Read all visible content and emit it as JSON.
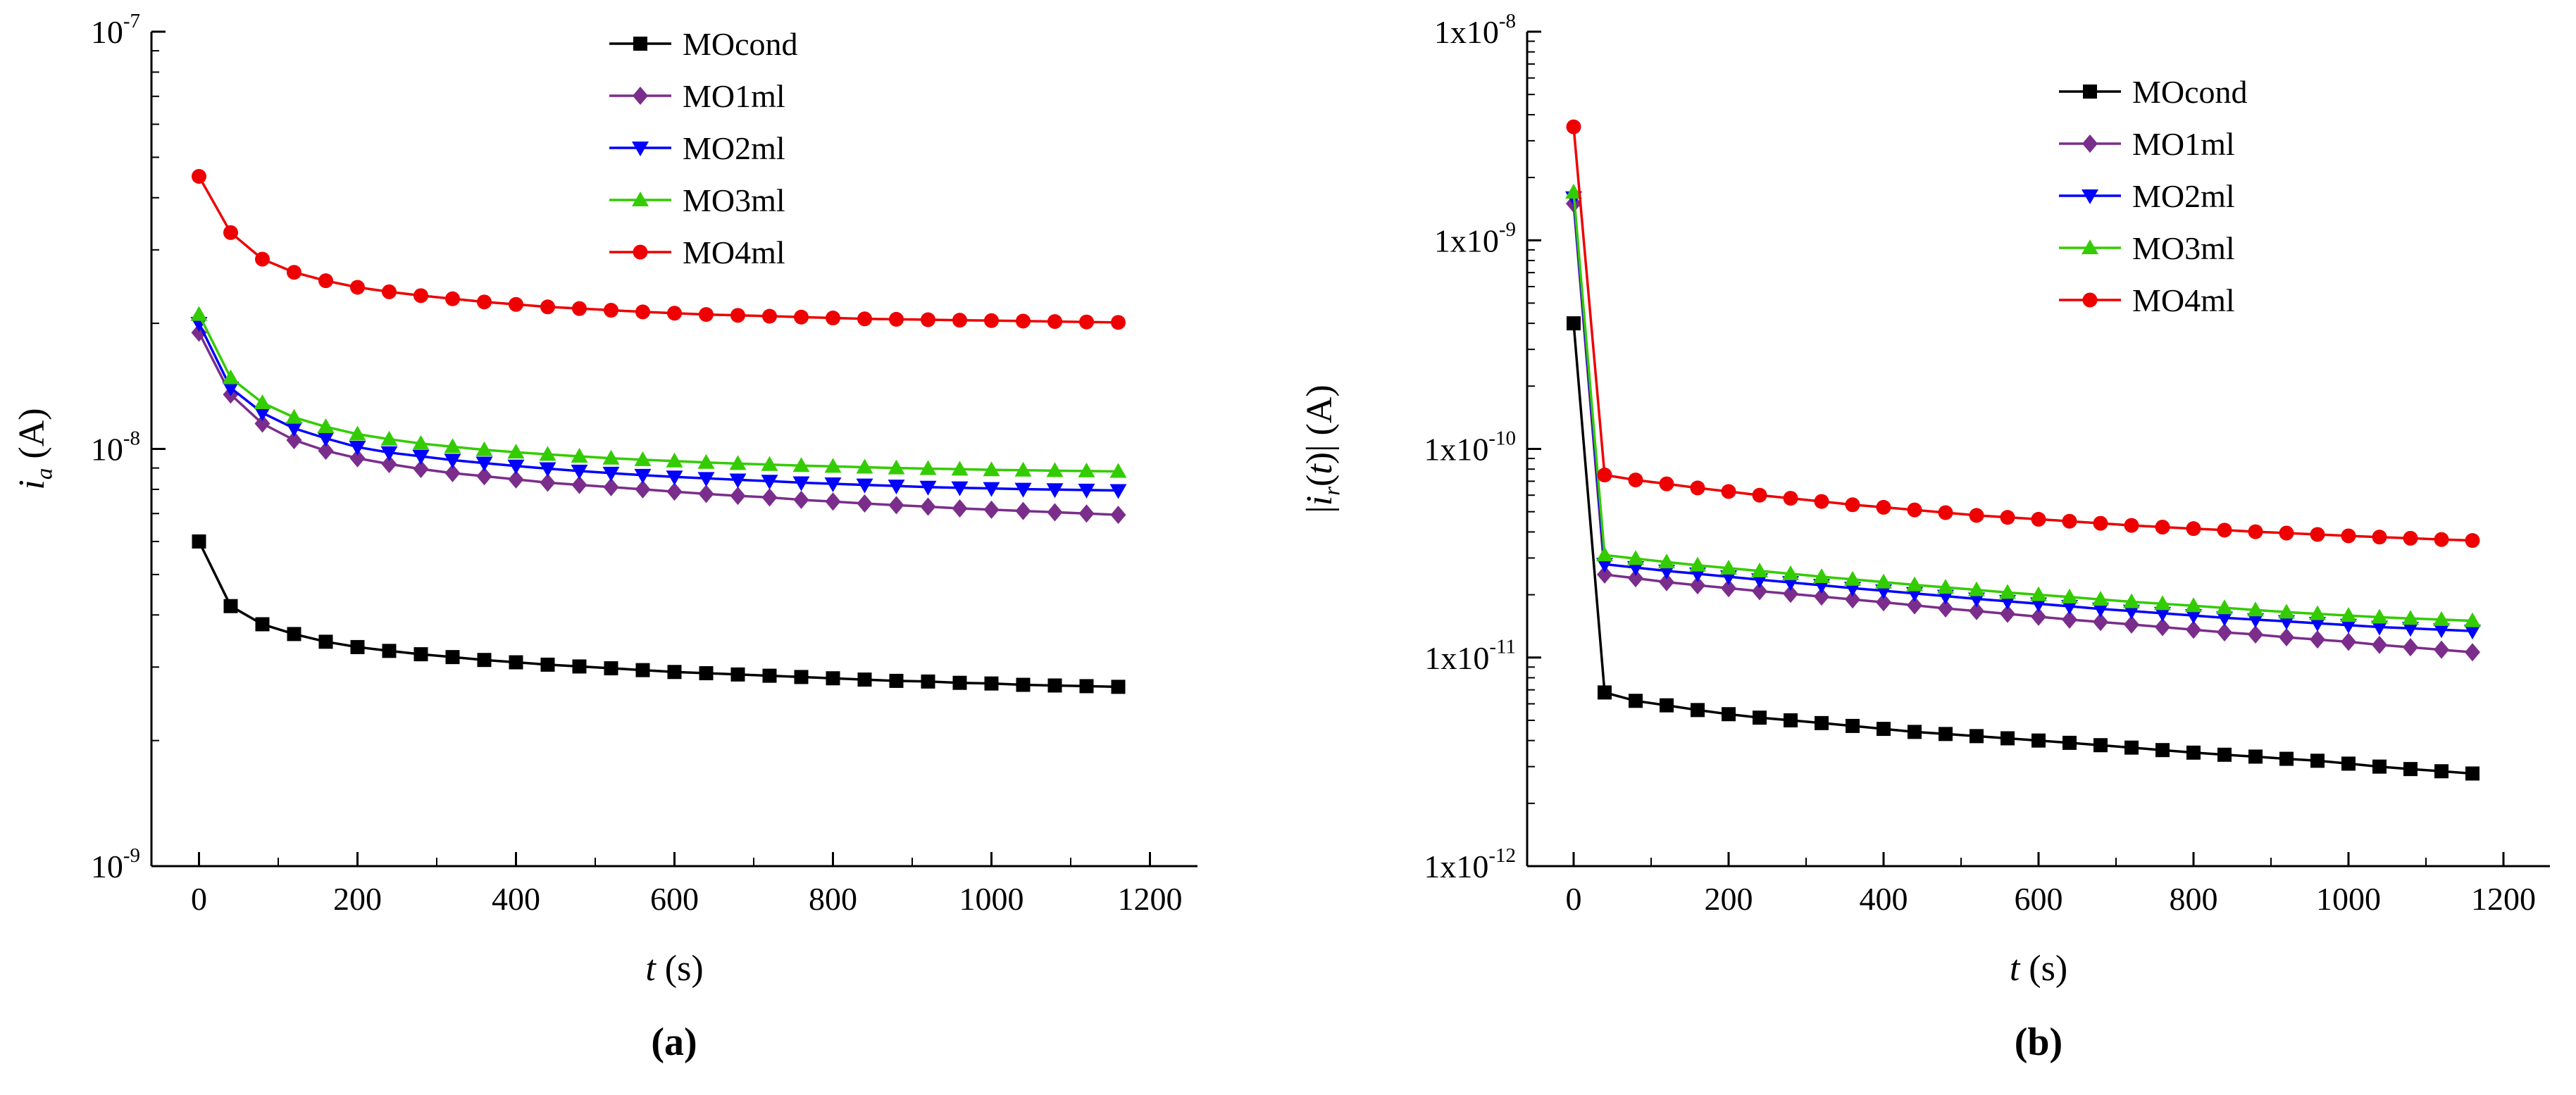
{
  "figure": {
    "background": "#ffffff",
    "series_colors": {
      "MOcond": "#000000",
      "MO1ml": "#7b2d8b",
      "MO2ml": "#0000ff",
      "MO3ml": "#33cc00",
      "MO4ml": "#ee0000"
    }
  },
  "chart_data": [
    {
      "id": "a",
      "type": "line",
      "caption": "(a)",
      "x_label": [
        {
          "text": "t",
          "italic": true
        },
        {
          "text": " (s)"
        }
      ],
      "y_label": [
        {
          "text": "i",
          "italic": true
        },
        {
          "text": "a",
          "italic": true,
          "sub": true
        },
        {
          "text": " (A)"
        }
      ],
      "x_range": [
        -60,
        1260
      ],
      "x_ticks": [
        0,
        200,
        400,
        600,
        800,
        1000,
        1200
      ],
      "x_minor_step": 100,
      "y_log_range": [
        -9,
        -7
      ],
      "y_ticks": [
        {
          "base": "10",
          "exp": "-7"
        },
        {
          "base": "10",
          "exp": "-8"
        },
        {
          "base": "10",
          "exp": "-9"
        }
      ],
      "legend_position": "top-center",
      "grid": false,
      "t": [
        0,
        40,
        80,
        120,
        160,
        200,
        240,
        280,
        320,
        360,
        400,
        440,
        480,
        520,
        560,
        600,
        640,
        680,
        720,
        760,
        800,
        840,
        880,
        920,
        960,
        1000,
        1040,
        1080,
        1120,
        1160
      ],
      "series": [
        {
          "name": "MOcond",
          "color": "#000000",
          "marker": "square",
          "y": [
            6e-09,
            4.2e-09,
            3.8e-09,
            3.6e-09,
            3.45e-09,
            3.35e-09,
            3.28e-09,
            3.22e-09,
            3.17e-09,
            3.12e-09,
            3.08e-09,
            3.04e-09,
            3.01e-09,
            2.98e-09,
            2.95e-09,
            2.92e-09,
            2.9e-09,
            2.88e-09,
            2.86e-09,
            2.84e-09,
            2.82e-09,
            2.8e-09,
            2.78e-09,
            2.77e-09,
            2.75e-09,
            2.74e-09,
            2.72e-09,
            2.71e-09,
            2.7e-09,
            2.69e-09
          ]
        },
        {
          "name": "MO1ml",
          "color": "#7b2d8b",
          "marker": "diamond",
          "y": [
            1.9e-08,
            1.35e-08,
            1.15e-08,
            1.05e-08,
            9.9e-09,
            9.5e-09,
            9.2e-09,
            8.95e-09,
            8.75e-09,
            8.6e-09,
            8.45e-09,
            8.3e-09,
            8.2e-09,
            8.1e-09,
            8e-09,
            7.9e-09,
            7.8e-09,
            7.72e-09,
            7.65e-09,
            7.55e-09,
            7.48e-09,
            7.4e-09,
            7.33e-09,
            7.27e-09,
            7.2e-09,
            7.15e-09,
            7.1e-09,
            7.05e-09,
            7e-09,
            6.95e-09
          ]
        },
        {
          "name": "MO2ml",
          "color": "#0000ff",
          "marker": "triangle-down",
          "y": [
            2e-08,
            1.4e-08,
            1.22e-08,
            1.12e-08,
            1.06e-08,
            1.01e-08,
            9.8e-09,
            9.6e-09,
            9.4e-09,
            9.25e-09,
            9.1e-09,
            8.97e-09,
            8.85e-09,
            8.75e-09,
            8.65e-09,
            8.57e-09,
            8.5e-09,
            8.43e-09,
            8.37e-09,
            8.3e-09,
            8.25e-09,
            8.2e-09,
            8.15e-09,
            8.1e-09,
            8.07e-09,
            8.04e-09,
            8.01e-09,
            7.99e-09,
            7.97e-09,
            7.95e-09
          ]
        },
        {
          "name": "MO3ml",
          "color": "#33cc00",
          "marker": "triangle-up",
          "y": [
            2.1e-08,
            1.48e-08,
            1.29e-08,
            1.19e-08,
            1.13e-08,
            1.085e-08,
            1.055e-08,
            1.03e-08,
            1.012e-08,
            9.95e-09,
            9.82e-09,
            9.7e-09,
            9.6e-09,
            9.5e-09,
            9.42e-09,
            9.35e-09,
            9.28e-09,
            9.22e-09,
            9.17e-09,
            9.12e-09,
            9.08e-09,
            9.04e-09,
            9e-09,
            8.97e-09,
            8.94e-09,
            8.91e-09,
            8.89e-09,
            8.87e-09,
            8.85e-09,
            8.83e-09
          ]
        },
        {
          "name": "MO4ml",
          "color": "#ee0000",
          "marker": "circle",
          "y": [
            4.5e-08,
            3.3e-08,
            2.85e-08,
            2.65e-08,
            2.53e-08,
            2.44e-08,
            2.38e-08,
            2.33e-08,
            2.29e-08,
            2.25e-08,
            2.22e-08,
            2.19e-08,
            2.17e-08,
            2.15e-08,
            2.13e-08,
            2.115e-08,
            2.1e-08,
            2.09e-08,
            2.08e-08,
            2.07e-08,
            2.06e-08,
            2.05e-08,
            2.045e-08,
            2.04e-08,
            2.035e-08,
            2.03e-08,
            2.025e-08,
            2.02e-08,
            2.015e-08,
            2.01e-08
          ]
        }
      ]
    },
    {
      "id": "b",
      "type": "line",
      "caption": "(b)",
      "x_label": [
        {
          "text": "t",
          "italic": true
        },
        {
          "text": " (s)"
        }
      ],
      "y_label": [
        {
          "text": "|"
        },
        {
          "text": "i",
          "italic": true
        },
        {
          "text": "r",
          "italic": true,
          "sub": true
        },
        {
          "text": "("
        },
        {
          "text": "t",
          "italic": true
        },
        {
          "text": ")| (A)"
        }
      ],
      "x_range": [
        -60,
        1260
      ],
      "x_ticks": [
        0,
        200,
        400,
        600,
        800,
        1000,
        1200
      ],
      "x_minor_step": 100,
      "y_log_range": [
        -12,
        -8
      ],
      "y_ticks": [
        {
          "base": "1x10",
          "exp": "-8"
        },
        {
          "base": "1x10",
          "exp": "-9"
        },
        {
          "base": "1x10",
          "exp": "-10"
        },
        {
          "base": "1x10",
          "exp": "-11"
        },
        {
          "base": "1x10",
          "exp": "-12"
        }
      ],
      "legend_position": "top-center",
      "grid": false,
      "t": [
        0,
        40,
        80,
        120,
        160,
        200,
        240,
        280,
        320,
        360,
        400,
        440,
        480,
        520,
        560,
        600,
        640,
        680,
        720,
        760,
        800,
        840,
        880,
        920,
        960,
        1000,
        1040,
        1080,
        1120,
        1160
      ],
      "series": [
        {
          "name": "MOcond",
          "color": "#000000",
          "marker": "square",
          "y": [
            4e-10,
            6.8e-12,
            6.2e-12,
            5.9e-12,
            5.6e-12,
            5.35e-12,
            5.15e-12,
            5e-12,
            4.85e-12,
            4.7e-12,
            4.55e-12,
            4.4e-12,
            4.3e-12,
            4.2e-12,
            4.1e-12,
            4e-12,
            3.9e-12,
            3.8e-12,
            3.7e-12,
            3.6e-12,
            3.5e-12,
            3.42e-12,
            3.35e-12,
            3.27e-12,
            3.2e-12,
            3.1e-12,
            3e-12,
            2.92e-12,
            2.85e-12,
            2.78e-12
          ]
        },
        {
          "name": "MO1ml",
          "color": "#7b2d8b",
          "marker": "diamond",
          "y": [
            1.5e-09,
            2.5e-11,
            2.4e-11,
            2.3e-11,
            2.22e-11,
            2.15e-11,
            2.08e-11,
            2.02e-11,
            1.96e-11,
            1.9e-11,
            1.84e-11,
            1.78e-11,
            1.72e-11,
            1.67e-11,
            1.62e-11,
            1.57e-11,
            1.52e-11,
            1.48e-11,
            1.44e-11,
            1.4e-11,
            1.36e-11,
            1.32e-11,
            1.29e-11,
            1.25e-11,
            1.22e-11,
            1.19e-11,
            1.15e-11,
            1.12e-11,
            1.09e-11,
            1.06e-11
          ]
        },
        {
          "name": "MO2ml",
          "color": "#0000ff",
          "marker": "triangle-down",
          "y": [
            1.6e-09,
            2.8e-11,
            2.7e-11,
            2.6e-11,
            2.52e-11,
            2.44e-11,
            2.36e-11,
            2.29e-11,
            2.22e-11,
            2.15e-11,
            2.09e-11,
            2.03e-11,
            1.97e-11,
            1.91e-11,
            1.86e-11,
            1.81e-11,
            1.76e-11,
            1.71e-11,
            1.67e-11,
            1.63e-11,
            1.59e-11,
            1.55e-11,
            1.52e-11,
            1.49e-11,
            1.46e-11,
            1.43e-11,
            1.4e-11,
            1.38e-11,
            1.36e-11,
            1.34e-11
          ]
        },
        {
          "name": "MO3ml",
          "color": "#33cc00",
          "marker": "triangle-up",
          "y": [
            1.7e-09,
            3.1e-11,
            2.98e-11,
            2.87e-11,
            2.77e-11,
            2.68e-11,
            2.6e-11,
            2.52e-11,
            2.44e-11,
            2.37e-11,
            2.3e-11,
            2.23e-11,
            2.17e-11,
            2.11e-11,
            2.05e-11,
            2e-11,
            1.95e-11,
            1.9e-11,
            1.85e-11,
            1.81e-11,
            1.77e-11,
            1.73e-11,
            1.69e-11,
            1.65e-11,
            1.62e-11,
            1.59e-11,
            1.56e-11,
            1.54e-11,
            1.52e-11,
            1.5e-11
          ]
        },
        {
          "name": "MO4ml",
          "color": "#ee0000",
          "marker": "circle",
          "y": [
            3.5e-09,
            7.5e-11,
            7.1e-11,
            6.8e-11,
            6.5e-11,
            6.25e-11,
            6e-11,
            5.8e-11,
            5.6e-11,
            5.4e-11,
            5.25e-11,
            5.1e-11,
            4.95e-11,
            4.8e-11,
            4.7e-11,
            4.6e-11,
            4.5e-11,
            4.4e-11,
            4.3e-11,
            4.22e-11,
            4.15e-11,
            4.08e-11,
            4.01e-11,
            3.95e-11,
            3.89e-11,
            3.83e-11,
            3.78e-11,
            3.73e-11,
            3.68e-11,
            3.64e-11
          ]
        }
      ]
    }
  ]
}
